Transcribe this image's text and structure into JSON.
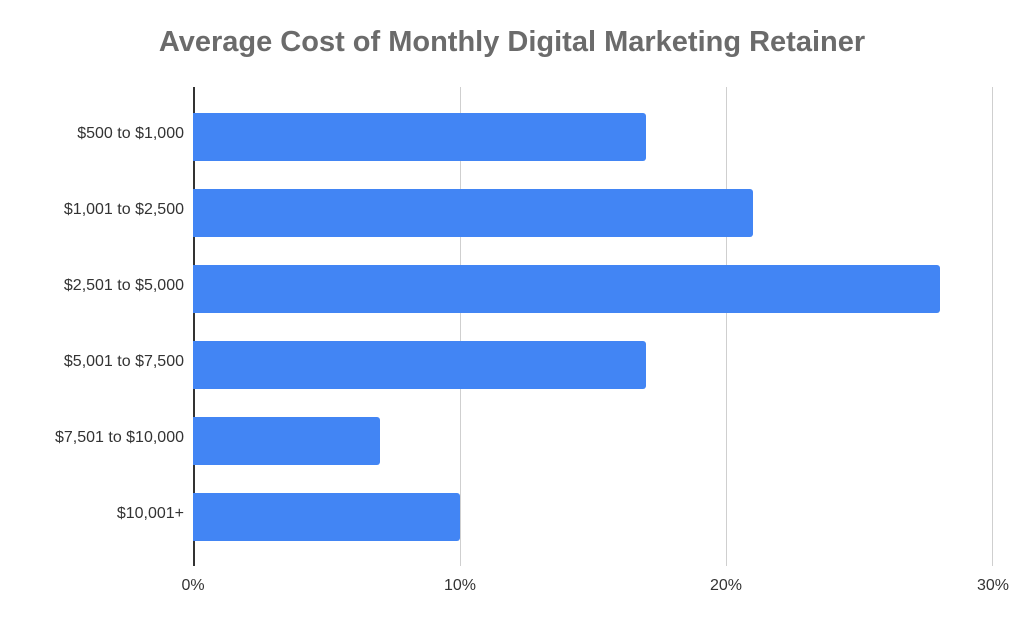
{
  "chart_data": {
    "type": "bar",
    "orientation": "horizontal",
    "title": "Average Cost of Monthly Digital Marketing Retainer",
    "xlabel": "",
    "ylabel": "",
    "categories": [
      "$500 to $1,000",
      "$1,001 to $2,500",
      "$2,501 to $5,000",
      "$5,001 to $7,500",
      "$7,501 to $10,000",
      "$10,001+"
    ],
    "values": [
      17,
      21,
      28,
      17,
      7,
      10
    ],
    "unit": "%",
    "xlim": [
      0,
      30
    ],
    "xticks": [
      "0%",
      "10%",
      "20%",
      "30%"
    ],
    "grid": true,
    "legend": "none",
    "bar_color": "#4285f4"
  }
}
